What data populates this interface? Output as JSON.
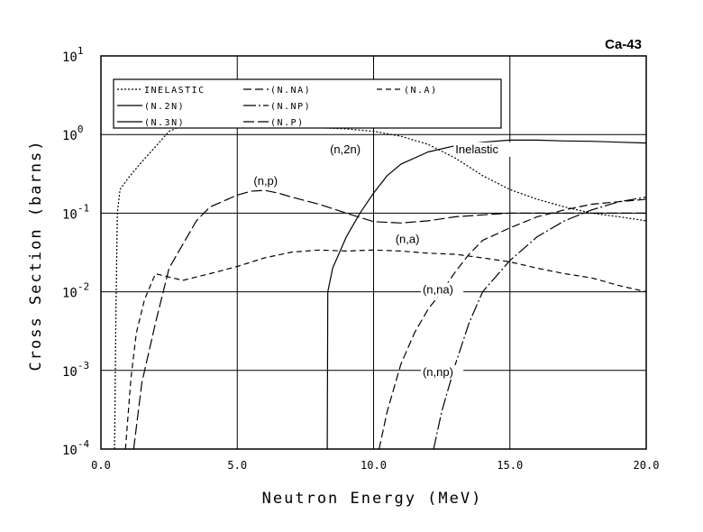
{
  "chart_data": {
    "type": "line",
    "title": "Ca-43",
    "xlabel": "Neutron Energy (MeV)",
    "ylabel": "Cross Section (barns)",
    "xlim": [
      0,
      20
    ],
    "ylim_log10": [
      -4,
      1
    ],
    "y_scale": "log",
    "grid": true,
    "x_ticks": [
      {
        "value": 0,
        "label": "0.0"
      },
      {
        "value": 5,
        "label": "5.0"
      },
      {
        "value": 10,
        "label": "10.0"
      },
      {
        "value": 15,
        "label": "15.0"
      },
      {
        "value": 20,
        "label": "20.0"
      }
    ],
    "y_ticks": [
      {
        "exp": 1,
        "base": "10",
        "sup": "1"
      },
      {
        "exp": 0,
        "base": "10",
        "sup": "0"
      },
      {
        "exp": -1,
        "base": "10",
        "sup": "-1"
      },
      {
        "exp": -2,
        "base": "10",
        "sup": "-2"
      },
      {
        "exp": -3,
        "base": "10",
        "sup": "-3"
      },
      {
        "exp": -4,
        "base": "10",
        "sup": "-4"
      }
    ],
    "legend_position": "top-left",
    "legend": [
      {
        "label": "INELASTIC",
        "dash": "2,2"
      },
      {
        "label": "(N.NA)",
        "dash": "9,4"
      },
      {
        "label": "(N.A)",
        "dash": "6,4"
      },
      {
        "label": "(N.2N)",
        "dash": ""
      },
      {
        "label": "(N.NP)",
        "dash": "14,3,2,3"
      },
      {
        "label": "(N.3N)",
        "dash": ""
      },
      {
        "label": "(N.P)",
        "dash": "12,4"
      }
    ],
    "annotations": [
      {
        "text": "(n,p)",
        "x": 5.6,
        "y": 0.23
      },
      {
        "text": "(n,2n)",
        "x": 8.4,
        "y": 0.58
      },
      {
        "text": "Inelastic",
        "x": 13.0,
        "y": 0.58
      },
      {
        "text": "(n,a)",
        "x": 10.8,
        "y": 0.042
      },
      {
        "text": "(n,na)",
        "x": 11.8,
        "y": 0.0095
      },
      {
        "text": "(n,np)",
        "x": 11.8,
        "y": 0.00085
      }
    ],
    "series": [
      {
        "name": "Inelastic",
        "dash": "2,2",
        "points": [
          [
            0.5,
            0.0001
          ],
          [
            0.55,
            0.005
          ],
          [
            0.6,
            0.1
          ],
          [
            0.7,
            0.2
          ],
          [
            1.0,
            0.28
          ],
          [
            1.5,
            0.45
          ],
          [
            2.0,
            0.7
          ],
          [
            2.5,
            1.1
          ],
          [
            3.0,
            1.3
          ],
          [
            3.5,
            1.38
          ],
          [
            4.0,
            1.35
          ],
          [
            5.0,
            1.3
          ],
          [
            6.0,
            1.3
          ],
          [
            7.0,
            1.25
          ],
          [
            8.0,
            1.22
          ],
          [
            9.0,
            1.18
          ],
          [
            10.0,
            1.1
          ],
          [
            11.0,
            0.95
          ],
          [
            12.0,
            0.75
          ],
          [
            13.0,
            0.5
          ],
          [
            14.0,
            0.3
          ],
          [
            15.0,
            0.2
          ],
          [
            16.0,
            0.15
          ],
          [
            17.0,
            0.12
          ],
          [
            18.0,
            0.1
          ],
          [
            19.0,
            0.09
          ],
          [
            20.0,
            0.08
          ]
        ]
      },
      {
        "name": "(n,2n)",
        "dash": "",
        "points": [
          [
            8.3,
            0.0001
          ],
          [
            8.32,
            0.01
          ],
          [
            8.5,
            0.02
          ],
          [
            9.0,
            0.05
          ],
          [
            9.5,
            0.1
          ],
          [
            10.0,
            0.18
          ],
          [
            10.5,
            0.3
          ],
          [
            11.0,
            0.42
          ],
          [
            12.0,
            0.6
          ],
          [
            13.0,
            0.72
          ],
          [
            14.0,
            0.8
          ],
          [
            15.0,
            0.85
          ],
          [
            16.0,
            0.85
          ],
          [
            17.0,
            0.83
          ],
          [
            18.0,
            0.82
          ],
          [
            19.0,
            0.8
          ],
          [
            20.0,
            0.78
          ]
        ]
      },
      {
        "name": "(n,p)",
        "dash": "12,4",
        "points": [
          [
            1.2,
            0.0001
          ],
          [
            1.5,
            0.0007
          ],
          [
            2.0,
            0.004
          ],
          [
            2.5,
            0.02
          ],
          [
            3.0,
            0.04
          ],
          [
            3.5,
            0.08
          ],
          [
            4.0,
            0.12
          ],
          [
            5.0,
            0.17
          ],
          [
            5.5,
            0.19
          ],
          [
            6.0,
            0.195
          ],
          [
            6.5,
            0.18
          ],
          [
            7.0,
            0.16
          ],
          [
            8.0,
            0.13
          ],
          [
            9.0,
            0.1
          ],
          [
            10.0,
            0.078
          ],
          [
            11.0,
            0.075
          ],
          [
            12.0,
            0.08
          ],
          [
            13.0,
            0.09
          ],
          [
            14.0,
            0.095
          ],
          [
            15.0,
            0.1
          ],
          [
            16.0,
            0.1
          ],
          [
            17.0,
            0.1
          ],
          [
            18.0,
            0.1
          ],
          [
            19.0,
            0.1
          ],
          [
            20.0,
            0.1
          ]
        ]
      },
      {
        "name": "(n,a)",
        "dash": "6,4",
        "points": [
          [
            0.9,
            0.0001
          ],
          [
            1.1,
            0.0008
          ],
          [
            1.3,
            0.003
          ],
          [
            1.6,
            0.008
          ],
          [
            2.0,
            0.017
          ],
          [
            2.3,
            0.016
          ],
          [
            3.0,
            0.014
          ],
          [
            4.0,
            0.017
          ],
          [
            5.0,
            0.021
          ],
          [
            6.0,
            0.027
          ],
          [
            7.0,
            0.032
          ],
          [
            8.0,
            0.034
          ],
          [
            9.0,
            0.033
          ],
          [
            10.0,
            0.034
          ],
          [
            11.0,
            0.033
          ],
          [
            12.0,
            0.031
          ],
          [
            13.0,
            0.03
          ],
          [
            14.0,
            0.027
          ],
          [
            15.0,
            0.024
          ],
          [
            16.0,
            0.02
          ],
          [
            17.0,
            0.017
          ],
          [
            18.0,
            0.015
          ],
          [
            19.0,
            0.012
          ],
          [
            20.0,
            0.01
          ]
        ]
      },
      {
        "name": "(n,na)",
        "dash": "9,4",
        "points": [
          [
            10.2,
            0.0001
          ],
          [
            10.5,
            0.0003
          ],
          [
            11.0,
            0.0012
          ],
          [
            11.5,
            0.003
          ],
          [
            12.0,
            0.006
          ],
          [
            12.5,
            0.01
          ],
          [
            13.0,
            0.018
          ],
          [
            13.5,
            0.03
          ],
          [
            14.0,
            0.045
          ],
          [
            15.0,
            0.065
          ],
          [
            16.0,
            0.09
          ],
          [
            17.0,
            0.11
          ],
          [
            18.0,
            0.13
          ],
          [
            19.0,
            0.14
          ],
          [
            20.0,
            0.15
          ]
        ]
      },
      {
        "name": "(n,np)",
        "dash": "14,3,2,3",
        "points": [
          [
            12.2,
            0.0001
          ],
          [
            12.5,
            0.0003
          ],
          [
            13.0,
            0.0012
          ],
          [
            13.5,
            0.004
          ],
          [
            14.0,
            0.01
          ],
          [
            15.0,
            0.025
          ],
          [
            16.0,
            0.05
          ],
          [
            17.0,
            0.08
          ],
          [
            18.0,
            0.11
          ],
          [
            19.0,
            0.14
          ],
          [
            20.0,
            0.16
          ]
        ]
      }
    ]
  }
}
